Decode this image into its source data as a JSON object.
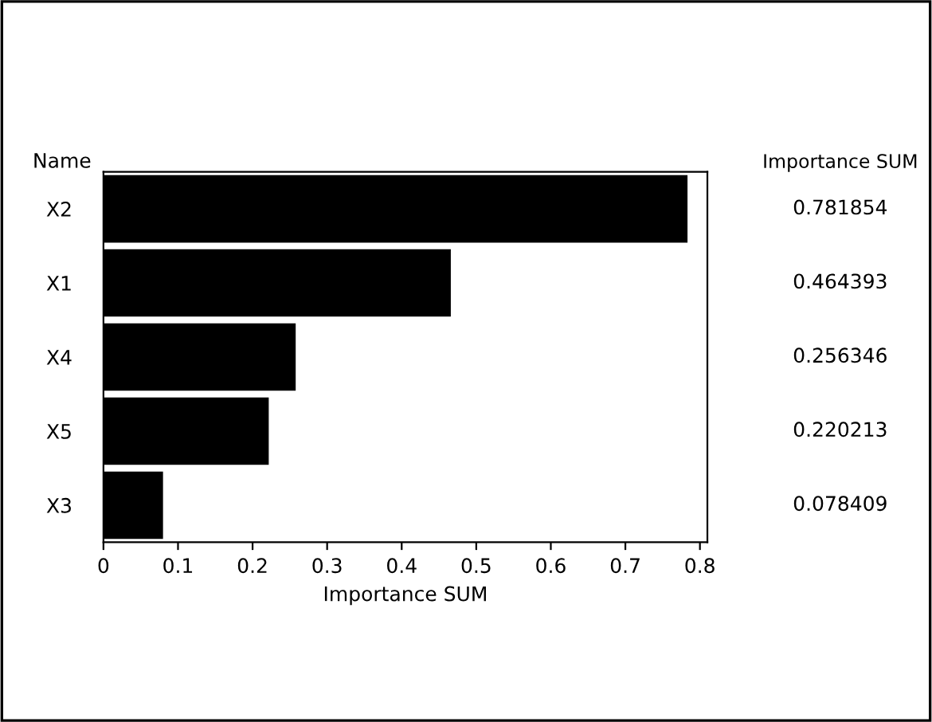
{
  "chart_data": {
    "type": "bar",
    "orientation": "horizontal",
    "categories": [
      "X2",
      "X1",
      "X4",
      "X5",
      "X3"
    ],
    "values": [
      0.781854,
      0.464393,
      0.256346,
      0.220213,
      0.078409
    ],
    "color": "#000000",
    "xlabel": "Importance SUM",
    "ylabel": "Name",
    "y2label": "Importance SUM",
    "xlim": [
      0,
      0.81
    ],
    "xticks": [
      0,
      0.1,
      0.2,
      0.3,
      0.4,
      0.5,
      0.6,
      0.7,
      0.8
    ],
    "data_labels": true,
    "grid": false
  }
}
